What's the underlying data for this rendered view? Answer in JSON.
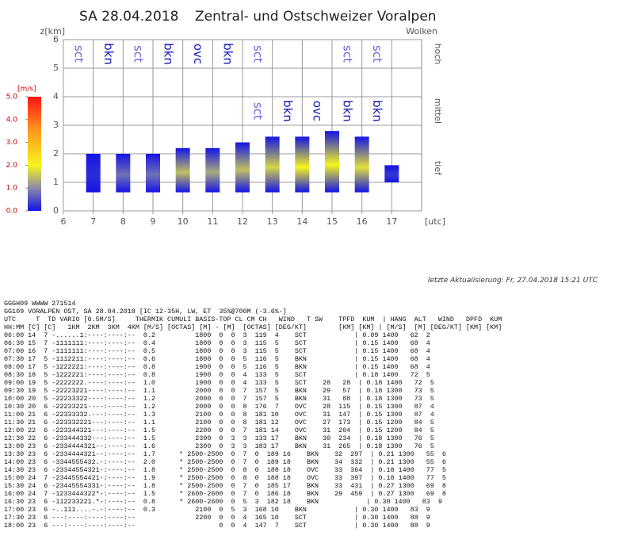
{
  "chart_data": {
    "type": "thermal",
    "title": "SA 28.04.2018",
    "subtitle": "Zentral- und Ostschweizer Voralpen",
    "y_label": "z[km]",
    "x_label": "[utc]",
    "cloud_label": "Wolken",
    "xlim": [
      6,
      18
    ],
    "xticks": [
      6,
      7,
      8,
      9,
      10,
      11,
      12,
      13,
      14,
      15,
      16,
      17
    ],
    "ylim": [
      0,
      6
    ],
    "yticks": [
      0,
      1,
      2,
      3,
      4,
      5,
      6
    ],
    "grid": true,
    "bars": {
      "x": [
        7,
        8,
        9,
        10,
        11,
        12,
        13,
        14,
        15,
        16,
        17
      ],
      "low": [
        0.65,
        0.65,
        0.65,
        0.65,
        0.65,
        0.65,
        0.65,
        0.65,
        0.65,
        0.65,
        1.0
      ],
      "high": [
        2.0,
        2.0,
        2.0,
        2.2,
        2.2,
        2.4,
        2.6,
        2.6,
        2.8,
        2.6,
        1.6
      ],
      "peak": [
        0.2,
        0.8,
        0.8,
        1.5,
        1.3,
        1.5,
        1.7,
        2.0,
        2.0,
        1.8,
        0.3
      ]
    },
    "colorbar": {
      "label": "[m/s]",
      "clim": [
        0,
        5
      ],
      "ticks": [
        {
          "value": 0,
          "label": "0.0"
        },
        {
          "value": 1,
          "label": "1.0"
        },
        {
          "value": 2,
          "label": "2.0"
        },
        {
          "value": 3,
          "label": "3.0"
        },
        {
          "value": 4,
          "label": "4.0"
        },
        {
          "value": 5,
          "label": "5.0"
        }
      ],
      "scale": [
        {
          "value": 0,
          "color": "#1414e6"
        },
        {
          "value": 1,
          "color": "#8a8aa6"
        },
        {
          "value": 2,
          "color": "#f5f51e"
        },
        {
          "value": 3.5,
          "color": "#ff9a1e"
        },
        {
          "value": 5,
          "color": "#ff1414"
        }
      ]
    },
    "levels": [
      {
        "name": "hoch",
        "y": 5.5
      },
      {
        "name": "mittel",
        "y": 3.5
      },
      {
        "name": "tief",
        "y": 1.5
      }
    ],
    "cover_colors": {
      "sct": "#6464dc",
      "bkn": "#1414b4",
      "ovc": "#1414b4"
    },
    "clouds": [
      {
        "x": 6.5,
        "y": 5.5,
        "text": "sct"
      },
      {
        "x": 7.5,
        "y": 5.5,
        "text": "bkn"
      },
      {
        "x": 8.5,
        "y": 5.5,
        "text": "sct"
      },
      {
        "x": 9.5,
        "y": 5.5,
        "text": "bkn"
      },
      {
        "x": 10.5,
        "y": 5.5,
        "text": "ovc"
      },
      {
        "x": 11.5,
        "y": 5.5,
        "text": "bkn"
      },
      {
        "x": 12.5,
        "y": 5.5,
        "text": "sct"
      },
      {
        "x": 15.5,
        "y": 5.5,
        "text": "sct"
      },
      {
        "x": 16.5,
        "y": 5.5,
        "text": "sct"
      },
      {
        "x": 12.5,
        "y": 3.5,
        "text": "sct"
      },
      {
        "x": 13.5,
        "y": 3.5,
        "text": "bkn"
      },
      {
        "x": 14.5,
        "y": 3.5,
        "text": "ovc"
      },
      {
        "x": 15.5,
        "y": 3.5,
        "text": "bkn"
      },
      {
        "x": 16.5,
        "y": 3.5,
        "text": "bkn"
      }
    ]
  },
  "update_note": "letzte Aktualisierung: Fr, 27.04.2018 15:21 UTC",
  "report": {
    "lines": [
      "GGGH09 WWWW 271514",
      "GG109 VORALPEN OST, SA 28.04.2018 [IC 12-35H, LW, ET  35%@700M (-3.6%-]",
      "UTC     T  TD VARIO [0.5M/S]     THERMIK CUMULI BASIS-TOP CL CM CH   WIND   T SW    TPFD  KUM  | HANG  ALT   WIND   DPFD  KUM",
      "HH:MM [C] [C]   1KM  2KM  3KM  4KM [M/S] [OCTAS] [M] - [M]  [OCTAS] [DEG/KT]        [KM] [KM] | [M/S]  [M] [DEG/KT] [KM] [KM]",
      "06:00 14  7 -......1:----:----:--  0.2          1800  0  0  3  119  4    SCT            | 0.09 1400   62  2",
      "06:30 15  7 -1111111:----:----:--  0.4          1800  0  0  3  115  5    SCT            | 0.15 1400   68  4",
      "07:00 16  7 -1111111:----:----:--  0.5          1800  0  0  3  115  5    SCT            | 0.15 1400   68  4",
      "07:30 17  5 -1112211:----:----:--  0.6          1800  0  0  5  116  5    BKN            | 0.15 1400   68  4",
      "08:00 17  5 -1222221:----:----:--  0.8          1900  0  0  5  116  5    BKN            | 0.15 1400   68  4",
      "08:30 18  5 -1222221:----:----:--  0.8          1900  0  0  4  133  5    SCT            | 0.18 1400   72  5",
      "09:00 19  5 -2222222.----:----:--  1.0          1900  0  0  4  133  5    SCT    28   28  | 0.18 1400   72  5",
      "09:30 19  5 -22223221----:----:--  1.1          2000  0  0  7  157  5    BKN    29   57  | 0.18 1300   73  5",
      "10:00 20  5 -22233322----:----:--  1.2          2000  0  0  7  157  5    BKN    31   88  | 0.18 1300   73  5",
      "10:30 20  6 -22233221----:----:--  1.2          2000  0  0  8  176  7    OVC    28  115  | 0.15 1300   87  4",
      "11:00 21  6 -22333332.---:----:--  1.3          2100  0  0  8  181 10    OVC    31  147  | 0.15 1300   87  4",
      "11:30 21  6 -223332221---:----:--  1.1          2100  0  0  8  181 12    OVC    27  173  | 0.15 1200   84  5",
      "12:00 22  6 -223344321---:----:--  1.5          2200  0  0  7  181 14    OVC    31  204  | 0.15 1200   84  5",
      "12:30 22  6 -233444332---:----:--  1.5          2300  0  3  3  133 17    BKN    30  234  | 0.18 1300   76  5",
      "13:00 23  6 -2334444321--:----:--  1.6          2300  0  3  3  183 17    BKN    31  265  | 0.18 1300   76  5",
      "13:30 23  6 -2334444321--:----:--  1.7      * 2500-2500  0  7  0  189 16    BKN    32  297  | 0.21 1300   55  6",
      "14:00 23  6 -3344555432.-:----:--  2.0      * 2500-2500  0  7  0  189 18    BKN    34  332  | 0.21 1300   55  6",
      "14:30 23  6 -23344554321-:----:--  1.8      * 2500-2500  0  8  0  188 18    OVC    33  364  | 0.18 1400   77  5",
      "15:00 24  7 -23445554421-:----:--  1.9      * 2500-2500  0  8  0  188 18    OVC    33  397  | 0.18 1400   77  5",
      "15:30 24  6 -23445554331-:----:--  1.8      * 2500-2500  0  7  0  185 17    BKN    33  431  | 0.27 1300   69  8",
      "16:00 24  7 -1233444322*-:----:--  1.5      * 2600-2600  0  7  0  186 18    BKN    29  459  | 0.27 1300   69  8",
      "16:30 23  6 -112233221.*-:----:--  0.8      * 2600-2600  0  5  3  182 18    BKN            | 0.30 1400   83  9",
      "17:00 23  6 -..111....-.-:----:--  0.3          2100  0  5  3  168 10    BKN            | 0.30 1400   83  9",
      "17:30 23  6 ---:----:----:----:--               2200  0  0  4  165 10    SCT            | 0.30 1400   88  9",
      "18:00 23  6 ---:----:----:----:--                     0  0  4  147  7    SCT            | 0.30 1400   88  9"
    ]
  }
}
